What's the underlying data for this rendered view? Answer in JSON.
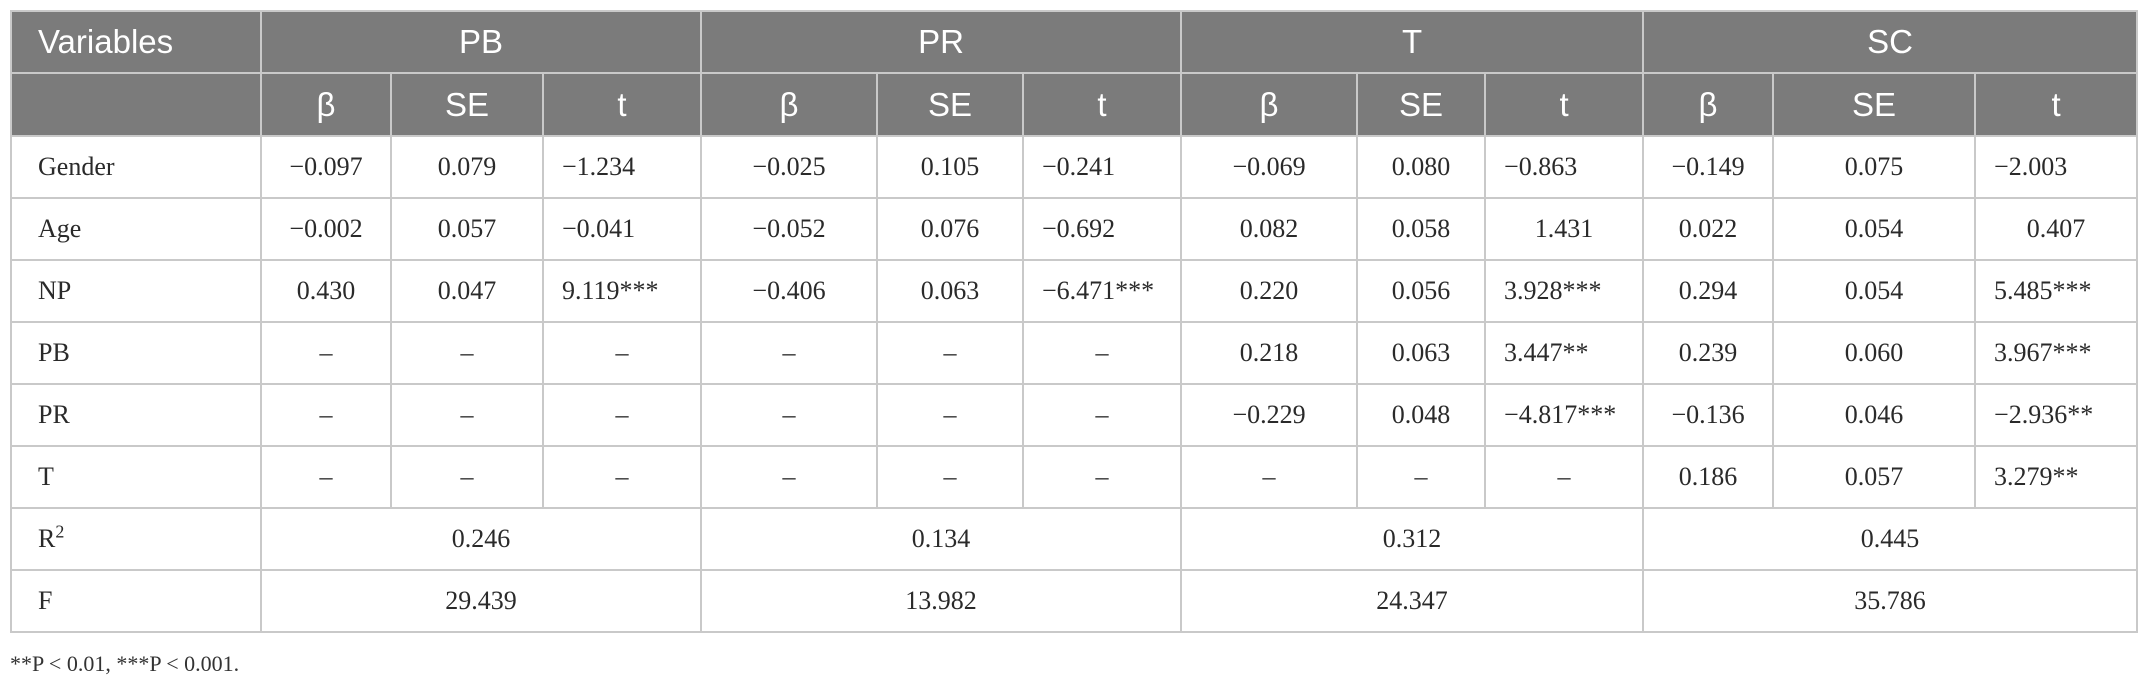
{
  "header": {
    "first_col": "Variables",
    "groups": [
      "PB",
      "PR",
      "T",
      "SC"
    ],
    "subheaders": [
      "β",
      "SE",
      "t"
    ]
  },
  "rows": [
    {
      "label": "Gender",
      "cells": [
        [
          "−0.097",
          "0.079",
          "−1.234"
        ],
        [
          "−0.025",
          "0.105",
          "−0.241"
        ],
        [
          "−0.069",
          "0.080",
          "−0.863"
        ],
        [
          "−0.149",
          "0.075",
          "−2.003"
        ]
      ]
    },
    {
      "label": "Age",
      "cells": [
        [
          "−0.002",
          "0.057",
          "−0.041"
        ],
        [
          "−0.052",
          "0.076",
          "−0.692"
        ],
        [
          "0.082",
          "0.058",
          "1.431"
        ],
        [
          "0.022",
          "0.054",
          "0.407"
        ]
      ]
    },
    {
      "label": "NP",
      "cells": [
        [
          "0.430",
          "0.047",
          "9.119***"
        ],
        [
          "−0.406",
          "0.063",
          "−6.471***"
        ],
        [
          "0.220",
          "0.056",
          "3.928***"
        ],
        [
          "0.294",
          "0.054",
          "5.485***"
        ]
      ]
    },
    {
      "label": "PB",
      "cells": [
        [
          "–",
          "–",
          "–"
        ],
        [
          "–",
          "–",
          "–"
        ],
        [
          "0.218",
          "0.063",
          "3.447**"
        ],
        [
          "0.239",
          "0.060",
          "3.967***"
        ]
      ]
    },
    {
      "label": "PR",
      "cells": [
        [
          "–",
          "–",
          "–"
        ],
        [
          "–",
          "–",
          "–"
        ],
        [
          "−0.229",
          "0.048",
          "−4.817***"
        ],
        [
          "−0.136",
          "0.046",
          "−2.936**"
        ]
      ]
    },
    {
      "label": "T",
      "cells": [
        [
          "–",
          "–",
          "–"
        ],
        [
          "–",
          "–",
          "–"
        ],
        [
          "–",
          "–",
          "–"
        ],
        [
          "0.186",
          "0.057",
          "3.279**"
        ]
      ]
    }
  ],
  "summary": [
    {
      "label": "R",
      "label_sup": "2",
      "values": [
        "0.246",
        "0.134",
        "0.312",
        "0.445"
      ]
    },
    {
      "label": "F",
      "label_sup": "",
      "values": [
        "29.439",
        "13.982",
        "24.347",
        "35.786"
      ]
    }
  ],
  "footnote": "**P < 0.01, ***P < 0.001."
}
